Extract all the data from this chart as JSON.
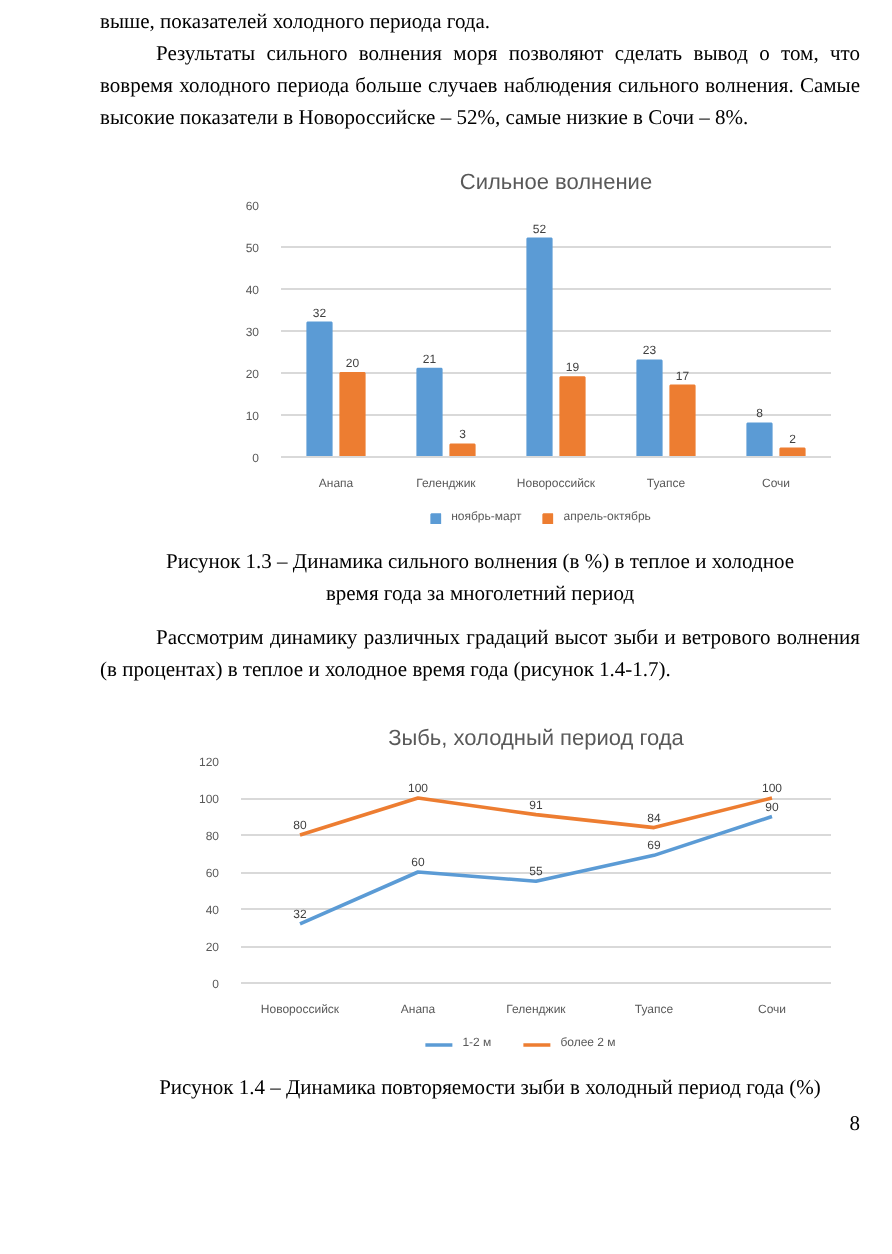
{
  "chart_data": [
    {
      "type": "bar",
      "title": "Сильное волнение",
      "categories": [
        "Анапа",
        "Геленджик",
        "Новороссийск",
        "Туапсе",
        "Сочи"
      ],
      "series": [
        {
          "name": "ноябрь-март",
          "color": "#5b9bd5",
          "values": [
            32,
            21,
            52,
            23,
            8
          ]
        },
        {
          "name": "апрель-октябрь",
          "color": "#ed7d31",
          "values": [
            20,
            3,
            19,
            17,
            2
          ]
        }
      ],
      "ylim": [
        0,
        60
      ],
      "yticks": [
        0,
        10,
        20,
        30,
        40,
        50,
        60
      ],
      "grid": "y",
      "legend": "bottom",
      "data_labels": true,
      "annotations": [
        "выше, показателей холодного периода года.",
        "Результаты сильного волнения моря позволяют сделать вывод о том, что вовремя холодного периода больше случаев наблюдения сильного волнения. Самые высокие показатели в Новороссийске – 52%, самые низкие в Сочи – 8%.",
        "Рисунок 1.3 – Динамика сильного волнения (в %) в теплое и холодное время года за многолетний период"
      ]
    },
    {
      "type": "line",
      "title": "Зыбь, холодный период года",
      "categories": [
        "Новороссийск",
        "Анапа",
        "Геленджик",
        "Туапсе",
        "Сочи"
      ],
      "series": [
        {
          "name": "1-2 м",
          "color": "#5b9bd5",
          "values": [
            32,
            60,
            55,
            69,
            90
          ]
        },
        {
          "name": "более 2 м",
          "color": "#ed7d31",
          "values": [
            80,
            100,
            91,
            84,
            100
          ]
        }
      ],
      "ylim": [
        0,
        120
      ],
      "yticks": [
        0,
        20,
        40,
        60,
        80,
        100,
        120
      ],
      "grid": "y",
      "legend": "bottom",
      "data_labels": true,
      "marker": "none",
      "line_style": "solid",
      "annotations": [
        "Рассмотрим динамику различных градаций высот зыби и ветрового волнения (в процентах) в теплое и холодное время года (рисунок 1.4-1.7).",
        "Рисунок 1.4 – Динамика повторяемости зыби в холодный период года (%)",
        "8"
      ]
    }
  ]
}
